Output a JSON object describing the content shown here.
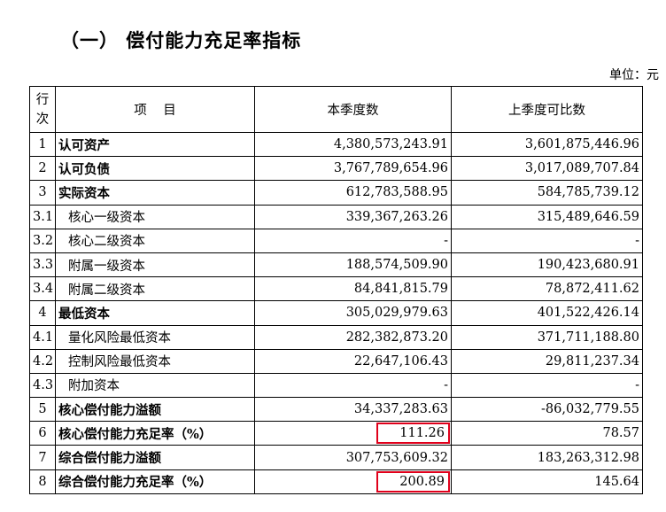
{
  "heading": "（一）  偿付能力充足率指标",
  "unit": "单位：元",
  "table": {
    "headers": {
      "no_line1": "行",
      "no_line2": "次",
      "item": "项    目",
      "current": "本季度数",
      "previous": "上季度可比数"
    },
    "rows": [
      {
        "no": "1",
        "label": "认可资产",
        "current": "4,380,573,243.91",
        "previous": "3,601,875,446.96",
        "bold": true
      },
      {
        "no": "2",
        "label": "认可负债",
        "current": "3,767,789,654.96",
        "previous": "3,017,089,707.84",
        "bold": true
      },
      {
        "no": "3",
        "label": "实际资本",
        "current": "612,783,588.95",
        "previous": "584,785,739.12",
        "bold": true
      },
      {
        "no": "3.1",
        "label": "核心一级资本",
        "current": "339,367,263.26",
        "previous": "315,489,646.59",
        "bold": false
      },
      {
        "no": "3.2",
        "label": "核心二级资本",
        "current": "-",
        "previous": "-",
        "bold": false
      },
      {
        "no": "3.3",
        "label": "附属一级资本",
        "current": "188,574,509.90",
        "previous": "190,423,680.91",
        "bold": false
      },
      {
        "no": "3.4",
        "label": "附属二级资本",
        "current": "84,841,815.79",
        "previous": "78,872,411.62",
        "bold": false
      },
      {
        "no": "4",
        "label": "最低资本",
        "current": "305,029,979.63",
        "previous": "401,522,426.14",
        "bold": true
      },
      {
        "no": "4.1",
        "label": "量化风险最低资本",
        "current": "282,382,873.20",
        "previous": "371,711,188.80",
        "bold": false
      },
      {
        "no": "4.2",
        "label": "控制风险最低资本",
        "current": "22,647,106.43",
        "previous": "29,811,237.34",
        "bold": false
      },
      {
        "no": "4.3",
        "label": "附加资本",
        "current": "-",
        "previous": "-",
        "bold": false
      },
      {
        "no": "5",
        "label": "核心偿付能力溢额",
        "current": "34,337,283.63",
        "previous": "-86,032,779.55",
        "bold": true
      },
      {
        "no": "6",
        "label": "核心偿付能力充足率（%）",
        "current": "111.26",
        "previous": "78.57",
        "bold": true,
        "highlight": true
      },
      {
        "no": "7",
        "label": "综合偿付能力溢额",
        "current": "307,753,609.32",
        "previous": "183,263,312.98",
        "bold": true
      },
      {
        "no": "8",
        "label": "综合偿付能力充足率（%）",
        "current": "200.89",
        "previous": "145.64",
        "bold": true,
        "highlight": true
      }
    ]
  },
  "colors": {
    "highlight_box": "#e0001b",
    "text": "#000000",
    "background": "#ffffff"
  }
}
